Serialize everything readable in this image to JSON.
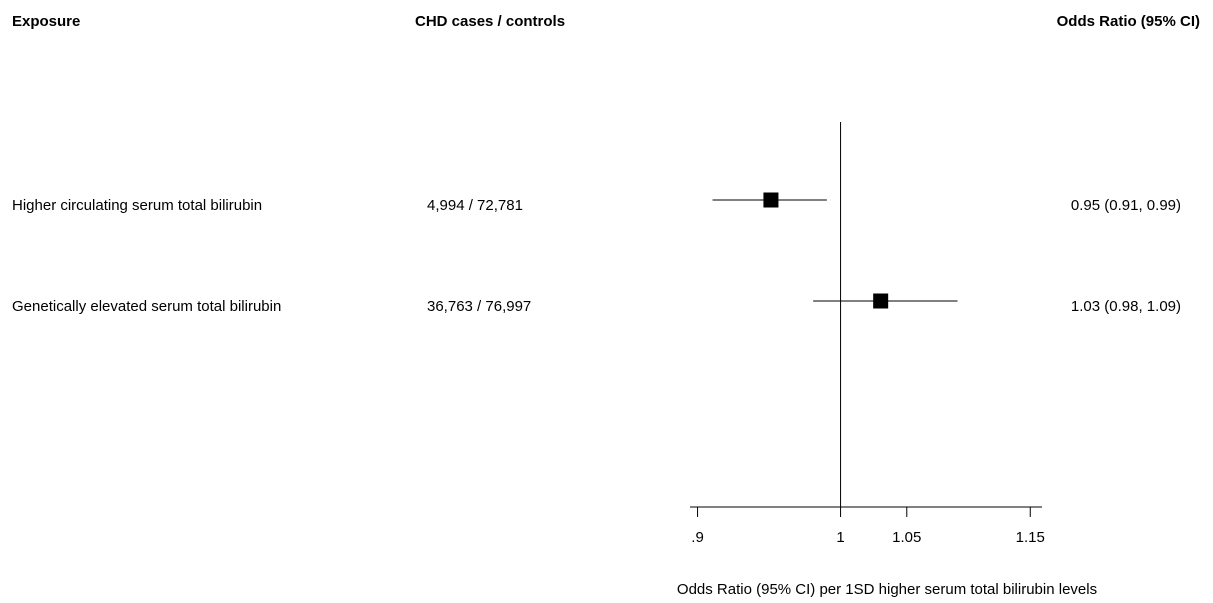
{
  "chart_data": {
    "type": "forest",
    "headers": [
      "Exposure",
      "CHD cases / controls",
      "Odds Ratio (95% CI)"
    ],
    "categories": [
      "Higher circulating serum total bilirubin",
      "Genetically elevated serum total bilirubin"
    ],
    "cases_controls": [
      "4,994 / 72,781",
      "36,763 / 76,997"
    ],
    "values": [
      0.95,
      1.03
    ],
    "lower": [
      0.91,
      0.98
    ],
    "upper": [
      0.99,
      1.09
    ],
    "value_labels": [
      "0.95 (0.91, 0.99)",
      "1.03 (0.98, 1.09)"
    ],
    "xlabel": "Odds Ratio (95% CI) per 1SD higher serum total bilirubin levels",
    "xscale": "log",
    "xlim": [
      0.895,
      1.16
    ],
    "xticks": [
      {
        "value": 0.9,
        "label": ".9"
      },
      1,
      1.05,
      1.15
    ],
    "color": "#000000"
  }
}
